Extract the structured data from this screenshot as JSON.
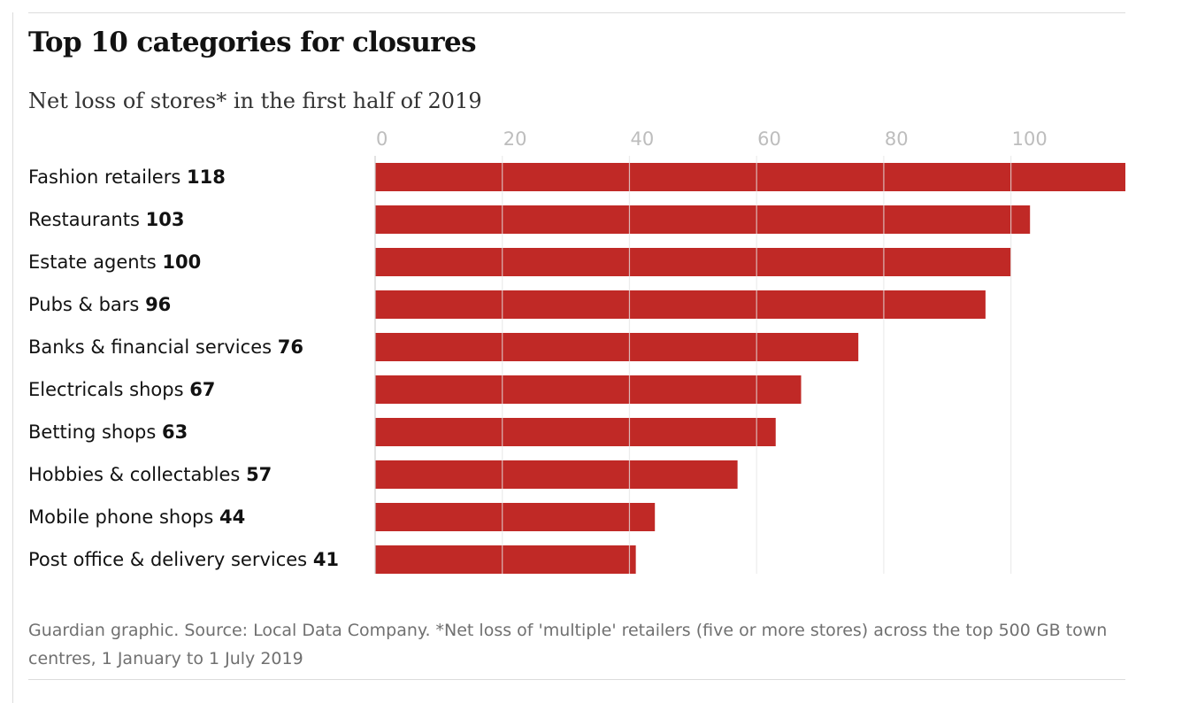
{
  "chart_data": {
    "type": "bar",
    "orientation": "horizontal",
    "title": "Top 10 categories for closures",
    "subtitle": "Net loss of stores* in the first half of 2019",
    "categories": [
      "Fashion retailers",
      "Restaurants",
      "Estate agents",
      "Pubs & bars",
      "Banks & financial services",
      "Electricals shops",
      "Betting shops",
      "Hobbies & collectables",
      "Mobile phone shops",
      "Post office & delivery services"
    ],
    "values": [
      118,
      103,
      100,
      96,
      76,
      67,
      63,
      57,
      44,
      41
    ],
    "xticks": [
      0,
      20,
      40,
      60,
      80,
      100
    ],
    "xlim": [
      0,
      118
    ],
    "xlabel": "",
    "ylabel": "",
    "grid": true,
    "legend": "none",
    "bar_color": "#c02926",
    "footnote": "Guardian graphic. Source: Local Data Company. *Net loss of 'multiple' retailers (five or more stores) across the top 500 GB town centres, 1 January to 1 July 2019"
  }
}
